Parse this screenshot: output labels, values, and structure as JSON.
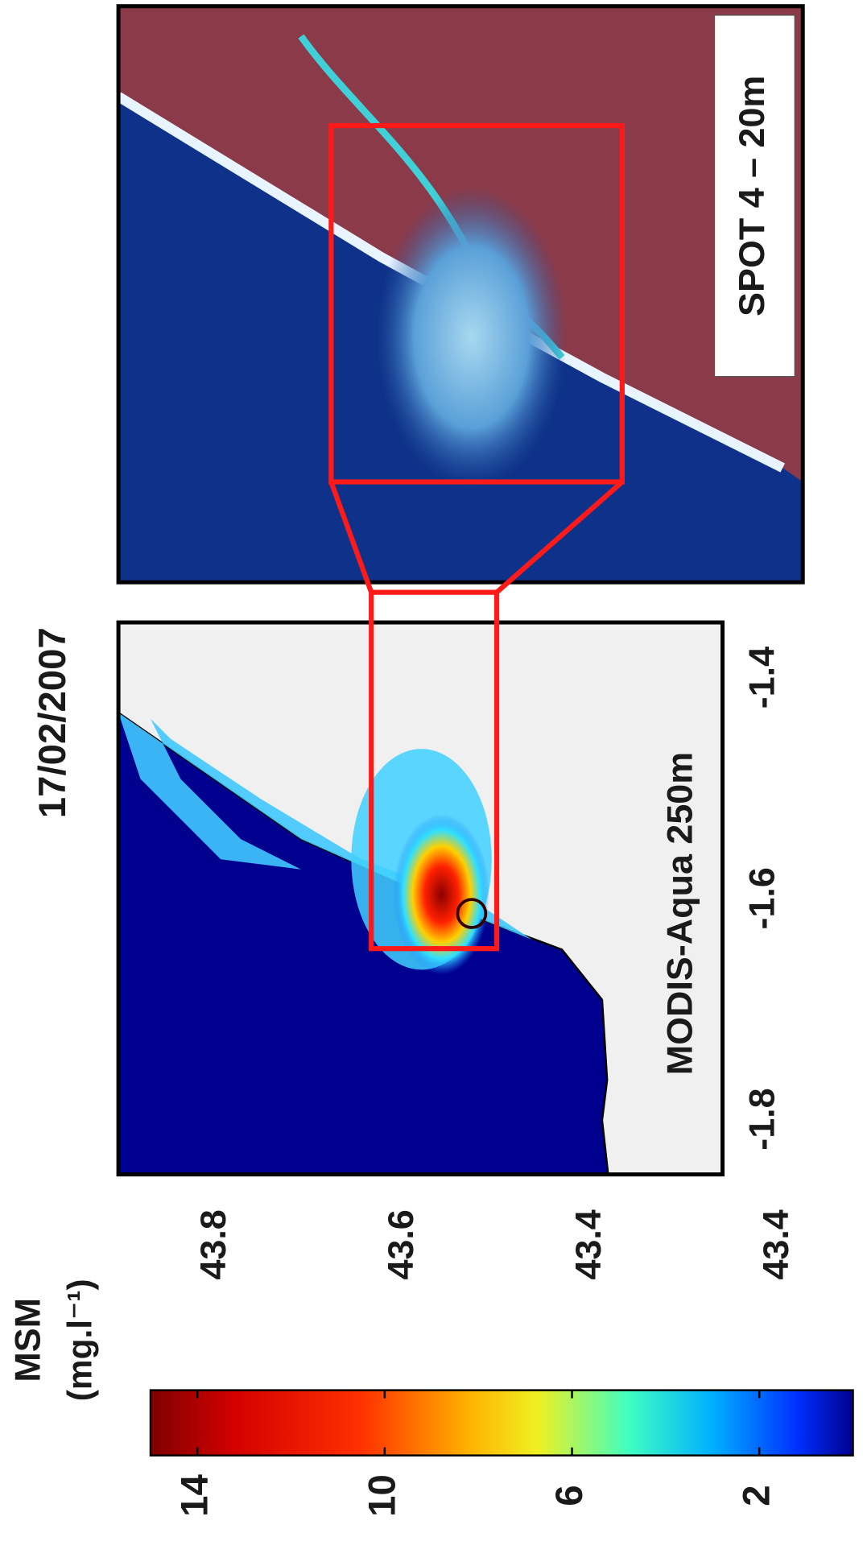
{
  "title": "17/02/2007",
  "colorbar": {
    "label": "MSM",
    "unit": "(mg.l⁻¹)",
    "lim": [
      0,
      15
    ],
    "ticks": [
      14,
      10,
      6,
      2
    ]
  },
  "modis_panel": {
    "label": "MODIS-Aqua 250m",
    "xlim": [
      -1.85,
      -1.35
    ],
    "xticks": [
      -1.8,
      -1.6,
      -1.4
    ],
    "lat_labels": [
      "43.8",
      "43.6",
      "43.4",
      "43.4"
    ]
  },
  "spot_panel": {
    "label": "SPOT 4 – 20m"
  }
}
